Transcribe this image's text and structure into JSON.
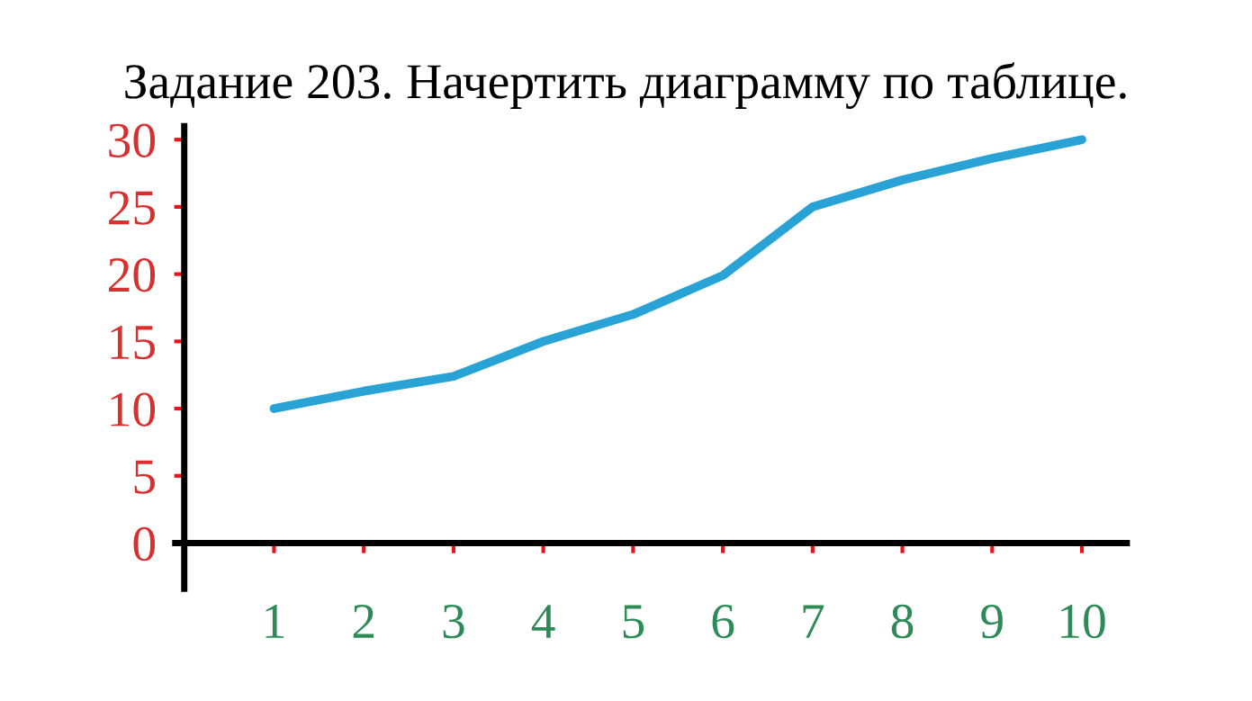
{
  "chart_data": {
    "type": "line",
    "title": "Задание 203. Начертить диаграмму по таблице.",
    "x": [
      1,
      2,
      3,
      4,
      5,
      6,
      7,
      8,
      9,
      10
    ],
    "series": [
      {
        "color": "#29a3d6",
        "values": [
          10,
          11.3,
          12.4,
          15,
          17,
          19.9,
          25,
          27,
          28.6,
          30
        ]
      }
    ],
    "xlim": [
      -0.1,
      10.5
    ],
    "ylim": [
      -3.4,
      31
    ],
    "xticks": [
      1,
      2,
      3,
      4,
      5,
      6,
      7,
      8,
      9,
      10
    ],
    "yticks": [
      0,
      5,
      10,
      15,
      20,
      25,
      30
    ],
    "grid": false,
    "legend": false,
    "marker": "none",
    "line_style": "solid"
  }
}
